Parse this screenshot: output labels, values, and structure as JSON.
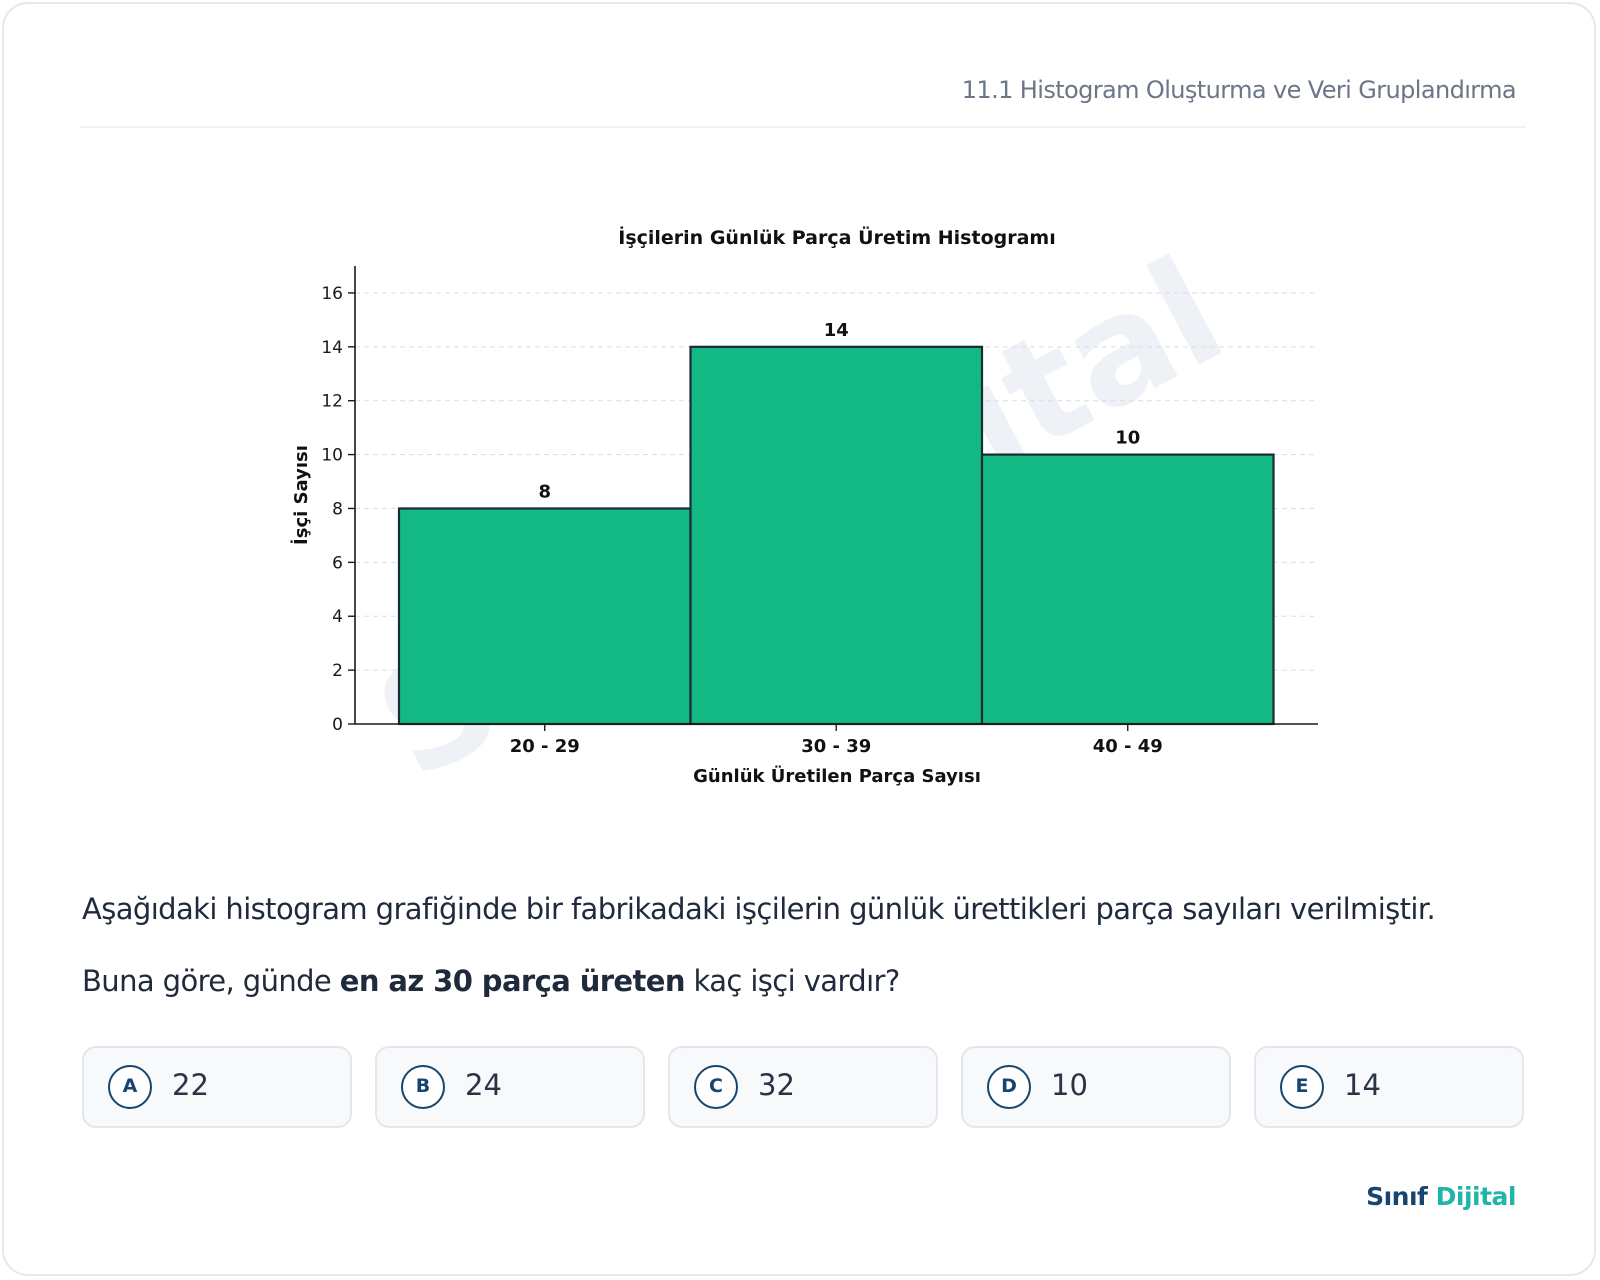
{
  "header": {
    "topic": "11.1 Histogram Oluşturma ve Veri Gruplandırma"
  },
  "chart_data": {
    "type": "bar",
    "title": "İşçilerin Günlük Parça Üretim Histogramı",
    "xlabel": "Günlük Üretilen Parça Sayısı",
    "ylabel": "İşçi Sayısı",
    "categories": [
      "20 - 29",
      "30 - 39",
      "40 - 49"
    ],
    "values": [
      8,
      14,
      10
    ],
    "data_labels": [
      "8",
      "14",
      "10"
    ],
    "ylim": [
      0,
      17
    ],
    "yticks": [
      0,
      2,
      4,
      6,
      8,
      10,
      12,
      14,
      16
    ],
    "grid": "horizontal dashed",
    "bar_color": "#13b982",
    "bar_edge_color": "#1c2a36"
  },
  "watermark": "Sınıf Dijital",
  "question": {
    "text": "Aşağıdaki histogram grafiğinde bir fabrikadaki işçilerin günlük ürettikleri parça sayıları verilmiştir.",
    "ask_before": "Buna göre, günde ",
    "ask_bold": "en az 30 parça üreten",
    "ask_after": " kaç işçi vardır?"
  },
  "options": [
    {
      "letter": "A",
      "value": "22"
    },
    {
      "letter": "B",
      "value": "24"
    },
    {
      "letter": "C",
      "value": "32"
    },
    {
      "letter": "D",
      "value": "10"
    },
    {
      "letter": "E",
      "value": "14"
    }
  ],
  "brand": {
    "part1": "Sınıf",
    "part2": "Dijital"
  },
  "colors": {
    "accent": "#16466f",
    "brand_accent": "#1fb5a8",
    "bar": "#13b982"
  }
}
